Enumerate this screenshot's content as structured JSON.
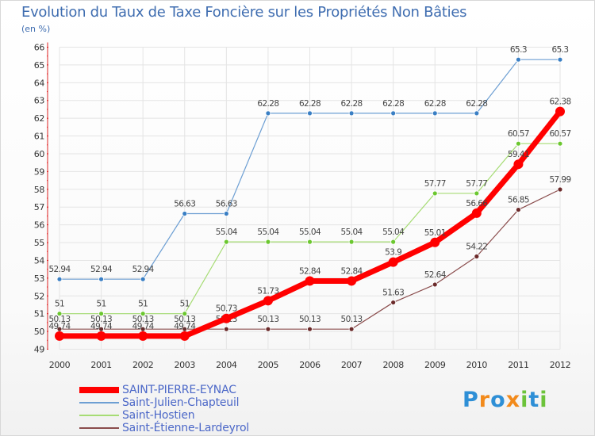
{
  "chart_data": {
    "type": "line",
    "title": "Evolution du Taux de Taxe Foncière sur les Propriétés Non Bâties",
    "ylabel": "(en %)",
    "x": [
      "2000",
      "2001",
      "2002",
      "2003",
      "2004",
      "2005",
      "2006",
      "2007",
      "2008",
      "2009",
      "2010",
      "2011",
      "2012"
    ],
    "ylim": [
      49,
      66
    ],
    "yticks": [
      "49",
      "50",
      "51",
      "52",
      "53",
      "54",
      "55",
      "56",
      "57",
      "58",
      "59",
      "60",
      "61",
      "62",
      "63",
      "64",
      "65",
      "66"
    ],
    "series": [
      {
        "name": "Saint-Julien-Chapteuil",
        "color": "#6d9fd3",
        "point_color": "#3a7fc4",
        "values": [
          52.94,
          52.94,
          52.94,
          56.63,
          56.63,
          62.28,
          62.28,
          62.28,
          62.28,
          62.28,
          62.28,
          65.3,
          65.3
        ],
        "labels": [
          "52.94",
          "52.94",
          "52.94",
          "56.63",
          "56.63",
          "62.28",
          "62.28",
          "62.28",
          "62.28",
          "62.28",
          "62.28",
          "65.3",
          "65.3"
        ]
      },
      {
        "name": "Saint-Hostien",
        "color": "#a6dc74",
        "point_color": "#6bc72f",
        "values": [
          51,
          51,
          51,
          51,
          55.04,
          55.04,
          55.04,
          55.04,
          55.04,
          57.77,
          57.77,
          60.57,
          60.57
        ],
        "labels": [
          "51",
          "51",
          "51",
          "51",
          "55.04",
          "55.04",
          "55.04",
          "55.04",
          "55.04",
          "57.77",
          "57.77",
          "60.57",
          "60.57"
        ]
      },
      {
        "name": "Saint-Étienne-Lardeyrol",
        "color": "#8a4c4c",
        "point_color": "#6b2a2a",
        "values": [
          50.13,
          50.13,
          50.13,
          50.13,
          50.13,
          50.13,
          50.13,
          50.13,
          51.63,
          52.64,
          54.22,
          56.85,
          57.99
        ],
        "labels": [
          "50.13",
          "50.13",
          "50.13",
          "50.13",
          "50.13",
          "50.13",
          "50.13",
          "50.13",
          "51.63",
          "52.64",
          "54.22",
          "56.85",
          "57.99"
        ]
      },
      {
        "name": "SAINT-PIERRE-EYNAC",
        "color": "#ff0000",
        "point_color": "#ff0000",
        "values": [
          49.74,
          49.74,
          49.74,
          49.74,
          50.73,
          51.73,
          52.84,
          52.84,
          53.9,
          55.01,
          56.66,
          59.41,
          62.38
        ],
        "labels": [
          "49.74",
          "49.74",
          "49.74",
          "49.74",
          "50.73",
          "51.73",
          "52.84",
          "52.84",
          "53.9",
          "55.01",
          "56.66",
          "59.41",
          "62.38"
        ]
      }
    ],
    "legend": [
      "SAINT-PIERRE-EYNAC",
      "Saint-Julien-Chapteuil",
      "Saint-Hostien",
      "Saint-Étienne-Lardeyrol"
    ],
    "legend_position": "bottom-left"
  },
  "brand": {
    "logo_text": "Proxiti"
  }
}
